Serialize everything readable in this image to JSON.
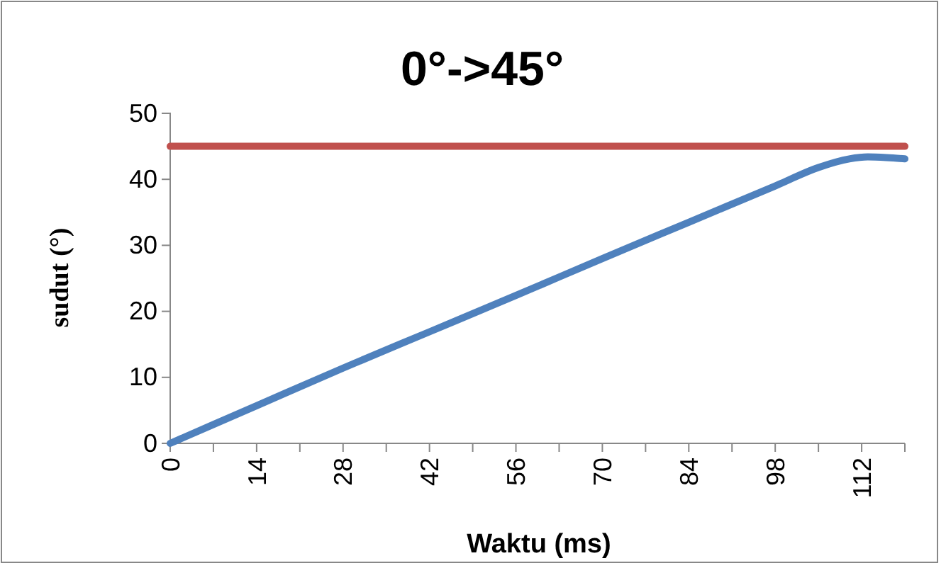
{
  "chart_data": {
    "type": "line",
    "title": "0°->45°",
    "xlabel": "Waktu (ms)",
    "ylabel": "sudut (°)",
    "xlim": [
      0,
      119
    ],
    "xticks": [
      0,
      {
        "value": 7,
        "label": null
      },
      14,
      {
        "value": 21,
        "label": null
      },
      28,
      {
        "value": 35,
        "label": null
      },
      42,
      {
        "value": 49,
        "label": null
      },
      56,
      {
        "value": 63,
        "label": null
      },
      70,
      {
        "value": 77,
        "label": null
      },
      84,
      {
        "value": 91,
        "label": null
      },
      98,
      {
        "value": 105,
        "label": null
      },
      112,
      {
        "value": 119,
        "label": null
      }
    ],
    "ylim": [
      0,
      50
    ],
    "yticks": [
      0,
      10,
      20,
      30,
      40,
      50
    ],
    "grid": false,
    "marker": "none",
    "series": [
      {
        "color": "#c0504d",
        "x": [
          0,
          119
        ],
        "values": [
          45,
          45
        ]
      },
      {
        "color": "#4f81bd",
        "x": [
          0,
          14,
          28,
          42,
          56,
          70,
          84,
          98,
          105,
          110,
          113,
          116,
          119
        ],
        "values": [
          0,
          5.7,
          11.4,
          16.9,
          22.4,
          28,
          33.5,
          39,
          41.8,
          43.1,
          43.4,
          43.3,
          43.1
        ]
      }
    ]
  }
}
